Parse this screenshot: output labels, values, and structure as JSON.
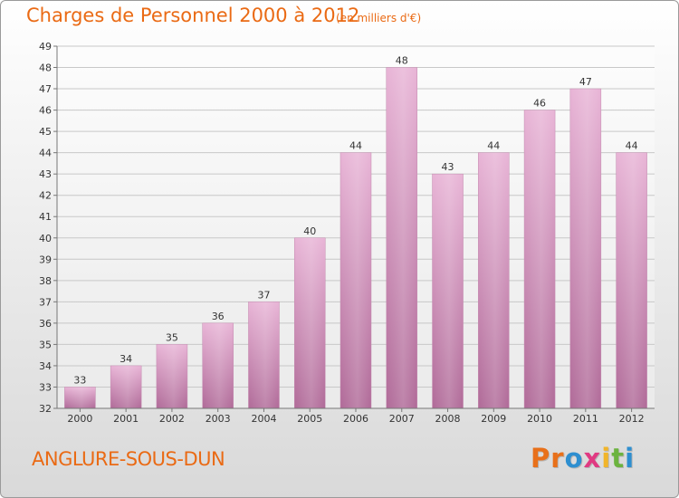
{
  "header": {
    "title": "Charges de Personnel 2000 à 2012",
    "subtitle": "(en milliers d'€)"
  },
  "footer": {
    "commune": "ANGLURE-SOUS-DUN",
    "logo_letters": [
      "P",
      "r",
      "o",
      "x",
      "i",
      "t",
      "i"
    ],
    "logo_colors": [
      "#e8701a",
      "#e8701a",
      "#2e8fd0",
      "#e03a82",
      "#f1b52a",
      "#6cb33f",
      "#2e8fd0"
    ]
  },
  "colors": {
    "bar_light": "#e8b4d6",
    "bar_dark": "#b06a98",
    "grid": "#c8c8c8",
    "axis": "#777777",
    "text": "#333333",
    "accent": "#ea6a14"
  },
  "chart_data": {
    "type": "bar",
    "title": "Charges de Personnel 2000 à 2012",
    "subtitle": "(en milliers d'€)",
    "categories": [
      "2000",
      "2001",
      "2002",
      "2003",
      "2004",
      "2005",
      "2006",
      "2007",
      "2008",
      "2009",
      "2010",
      "2011",
      "2012"
    ],
    "values": [
      33,
      34,
      35,
      36,
      37,
      40,
      44,
      48,
      43,
      44,
      46,
      47,
      44
    ],
    "ylim": [
      32,
      49
    ],
    "yticks": [
      32,
      33,
      34,
      35,
      36,
      37,
      38,
      39,
      40,
      41,
      42,
      43,
      44,
      45,
      46,
      47,
      48,
      49
    ],
    "grid": true,
    "data_labels": true
  }
}
